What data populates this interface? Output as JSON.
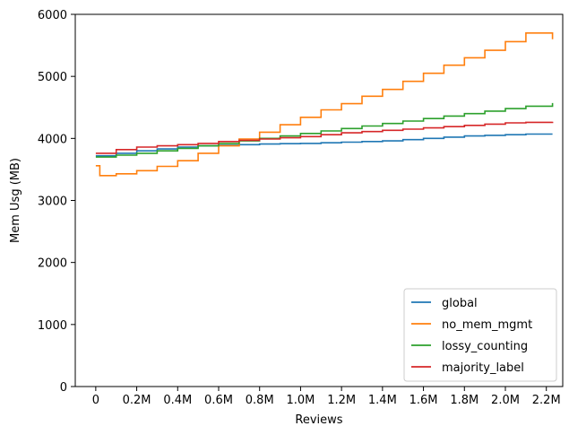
{
  "chart_data": {
    "type": "line",
    "xlabel": "Reviews",
    "ylabel": "Mem Usg (MB)",
    "xlim": [
      -0.1,
      2.28
    ],
    "ylim": [
      0,
      6000
    ],
    "x_ticks": [
      0,
      0.2,
      0.4,
      0.6,
      0.8,
      1.0,
      1.2,
      1.4,
      1.6,
      1.8,
      2.0,
      2.2
    ],
    "x_tick_labels": [
      "0",
      "0.2M",
      "0.4M",
      "0.6M",
      "0.8M",
      "1.0M",
      "1.2M",
      "1.4M",
      "1.6M",
      "1.8M",
      "2.0M",
      "2.2M"
    ],
    "y_ticks": [
      0,
      1000,
      2000,
      3000,
      4000,
      5000,
      6000
    ],
    "y_tick_labels": [
      "0",
      "1000",
      "2000",
      "3000",
      "4000",
      "5000",
      "6000"
    ],
    "grid": false,
    "legend_position": "bottom-right",
    "colors": {
      "global": "#1f77b4",
      "no_mem_mgmt": "#ff7f0e",
      "lossy_counting": "#2ca02c",
      "majority_label": "#d62728"
    },
    "series": [
      {
        "name": "global",
        "x": [
          0,
          0.1,
          0.2,
          0.3,
          0.4,
          0.5,
          0.6,
          0.7,
          0.8,
          0.9,
          1.0,
          1.1,
          1.2,
          1.3,
          1.4,
          1.5,
          1.6,
          1.7,
          1.8,
          1.9,
          2.0,
          2.1,
          2.23
        ],
        "y": [
          3720,
          3760,
          3800,
          3830,
          3860,
          3880,
          3890,
          3900,
          3910,
          3915,
          3920,
          3930,
          3940,
          3950,
          3960,
          3980,
          4000,
          4020,
          4040,
          4050,
          4060,
          4070,
          4070
        ]
      },
      {
        "name": "no_mem_mgmt",
        "x": [
          0,
          0.02,
          0.1,
          0.2,
          0.3,
          0.4,
          0.5,
          0.6,
          0.7,
          0.8,
          0.9,
          1.0,
          1.1,
          1.2,
          1.3,
          1.4,
          1.5,
          1.6,
          1.7,
          1.8,
          1.9,
          2.0,
          2.1,
          2.23
        ],
        "y": [
          3560,
          3400,
          3430,
          3480,
          3550,
          3640,
          3760,
          3880,
          3990,
          4100,
          4220,
          4340,
          4460,
          4560,
          4680,
          4790,
          4920,
          5050,
          5180,
          5300,
          5420,
          5560,
          5700,
          5600
        ]
      },
      {
        "name": "lossy_counting",
        "x": [
          0,
          0.1,
          0.2,
          0.3,
          0.4,
          0.5,
          0.6,
          0.7,
          0.8,
          0.9,
          1.0,
          1.1,
          1.2,
          1.3,
          1.4,
          1.5,
          1.6,
          1.7,
          1.8,
          1.9,
          2.0,
          2.1,
          2.23
        ],
        "y": [
          3700,
          3730,
          3760,
          3800,
          3840,
          3880,
          3920,
          3960,
          4000,
          4040,
          4080,
          4120,
          4160,
          4200,
          4240,
          4280,
          4320,
          4360,
          4400,
          4440,
          4480,
          4520,
          4570
        ]
      },
      {
        "name": "majority_label",
        "x": [
          0,
          0.1,
          0.2,
          0.3,
          0.4,
          0.5,
          0.6,
          0.7,
          0.8,
          0.9,
          1.0,
          1.1,
          1.2,
          1.3,
          1.4,
          1.5,
          1.6,
          1.7,
          1.8,
          1.9,
          2.0,
          2.1,
          2.23
        ],
        "y": [
          3760,
          3820,
          3860,
          3880,
          3900,
          3920,
          3950,
          3970,
          3990,
          4010,
          4030,
          4060,
          4090,
          4110,
          4130,
          4150,
          4170,
          4190,
          4210,
          4230,
          4250,
          4260,
          4270
        ]
      }
    ]
  }
}
